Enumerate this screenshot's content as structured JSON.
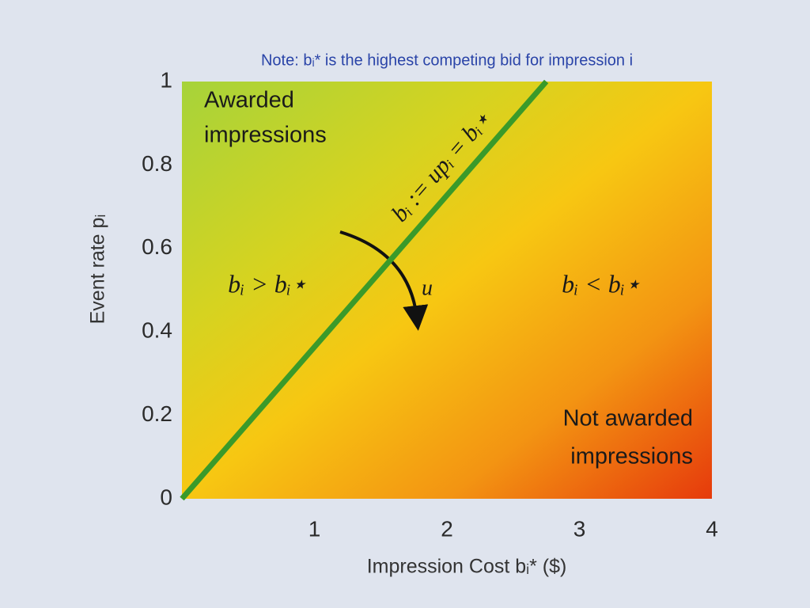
{
  "chart_data": {
    "type": "line",
    "note": "Note: bᵢ* is the highest competing bid for impression i",
    "xlabel": "Impression Cost bᵢ* ($)",
    "ylabel": "Event rate pᵢ",
    "x": [
      0,
      2.75
    ],
    "values": [
      0,
      1
    ],
    "color": "#3a9a2a",
    "xlim": [
      0,
      4
    ],
    "ylim": [
      0,
      1
    ],
    "xticks": [
      1,
      2,
      3,
      4
    ],
    "yticks": [
      0,
      0.2,
      0.4,
      0.6,
      0.8,
      1
    ],
    "grid": false,
    "annotations": [
      "Awarded",
      "impressions",
      "Not awarded",
      "impressions",
      "bᵢ > bᵢ⋆",
      "bᵢ < bᵢ⋆",
      "bᵢ := upᵢ = bᵢ⋆",
      "u"
    ]
  }
}
